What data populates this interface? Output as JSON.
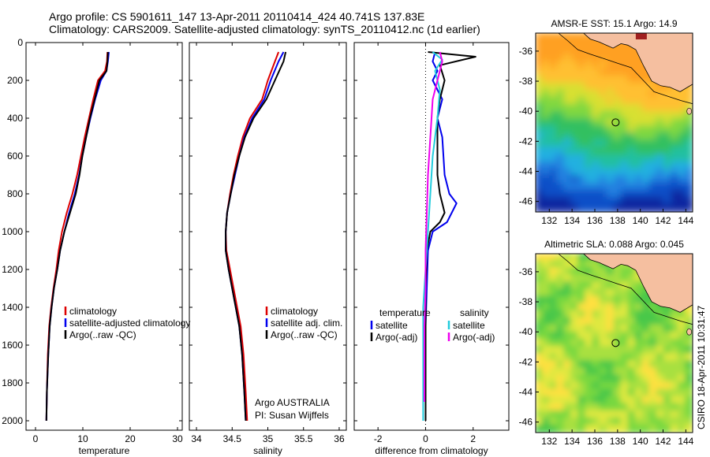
{
  "header": {
    "line1": "Argo profile: CS 5901611_147 13-Apr-2011 20110414_424 40.741S 137.83E",
    "line2": "Climatology: CARS2009. Satellite-adjusted climatology: synTS_20110412.nc (1d earlier)"
  },
  "side_text": "CSIRO 18-Apr-2011 10:31:47",
  "credits": {
    "line1": "Argo AUSTRALIA",
    "line2": "PI: Susan Wijffels"
  },
  "colors": {
    "climatology": "#dd0000",
    "satellite": "#0000ee",
    "argo": "#000000",
    "sal_sat": "#22ccdd",
    "sal_argo": "#ee00ee",
    "land": "#f5bfa0"
  },
  "chart_data": [
    {
      "type": "line",
      "id": "temperature",
      "xlabel": "temperature",
      "ylabel": "",
      "xlim": [
        -2,
        31
      ],
      "ylim": [
        2050,
        0
      ],
      "y_reversed": true,
      "xticks": [
        0,
        10,
        20,
        30
      ],
      "yticks": [
        0,
        200,
        400,
        600,
        800,
        1000,
        1200,
        1400,
        1600,
        1800,
        2000
      ],
      "legend": [
        "climatology",
        "satellite-adjusted climatology",
        "Argo(..raw -QC)"
      ],
      "legend_position": "lower-right",
      "series": [
        {
          "name": "climatology",
          "color": "#dd0000",
          "x": [
            15.2,
            15.1,
            14.7,
            13.2,
            12.2,
            11.3,
            10.4,
            9.6,
            8.8,
            7.8,
            6.6,
            5.6,
            4.9,
            4.4,
            3.8,
            3.3,
            2.9,
            2.6,
            2.4,
            2.3
          ],
          "y": [
            50,
            100,
            150,
            200,
            300,
            400,
            500,
            600,
            700,
            800,
            900,
            1000,
            1100,
            1200,
            1300,
            1400,
            1500,
            1650,
            1850,
            2000
          ]
        },
        {
          "name": "satellite-adjusted climatology",
          "color": "#0000ee",
          "x": [
            15.5,
            15.3,
            15.0,
            13.8,
            12.6,
            11.6,
            10.7,
            9.9,
            9.2,
            8.3,
            7.1,
            6.1,
            5.2,
            4.6,
            3.9,
            3.4,
            3.0,
            2.7,
            2.4,
            2.3
          ],
          "y": [
            50,
            100,
            150,
            200,
            300,
            400,
            500,
            600,
            700,
            800,
            900,
            1000,
            1100,
            1200,
            1300,
            1400,
            1500,
            1650,
            1850,
            2000
          ]
        },
        {
          "name": "Argo(..raw -QC)",
          "color": "#000000",
          "x": [
            15.3,
            15.2,
            15.0,
            13.5,
            12.5,
            11.5,
            10.7,
            9.9,
            9.3,
            8.5,
            7.3,
            6.1,
            5.2,
            4.6,
            3.9,
            3.4,
            3.0,
            2.7,
            2.4,
            2.3
          ],
          "y": [
            50,
            100,
            150,
            200,
            300,
            400,
            500,
            600,
            700,
            800,
            900,
            1000,
            1100,
            1200,
            1300,
            1400,
            1500,
            1650,
            1850,
            2000
          ]
        }
      ]
    },
    {
      "type": "line",
      "id": "salinity",
      "xlabel": "salinity",
      "ylabel": "",
      "xlim": [
        33.9,
        36.1
      ],
      "ylim": [
        2050,
        0
      ],
      "y_reversed": true,
      "xticks": [
        34,
        34.5,
        35,
        35.5,
        36
      ],
      "legend": [
        "climatology",
        "satellite adj. clim.",
        "Argo(..raw -QC)"
      ],
      "legend_position": "lower-right",
      "series": [
        {
          "name": "climatology",
          "color": "#dd0000",
          "x": [
            35.15,
            35.1,
            35.0,
            34.92,
            34.75,
            34.65,
            34.58,
            34.52,
            34.47,
            34.43,
            34.41,
            34.42,
            34.47,
            34.52,
            34.57,
            34.62,
            34.66,
            34.69,
            34.71
          ],
          "y": [
            50,
            100,
            200,
            300,
            400,
            500,
            600,
            700,
            800,
            900,
            1000,
            1100,
            1200,
            1300,
            1400,
            1500,
            1650,
            1850,
            2000
          ]
        },
        {
          "name": "satellite adj. clim.",
          "color": "#0000ee",
          "x": [
            35.22,
            35.15,
            35.04,
            34.95,
            34.78,
            34.67,
            34.6,
            34.54,
            34.48,
            34.43,
            34.41,
            34.41,
            34.45,
            34.5,
            34.55,
            34.6,
            34.64,
            34.67,
            34.69
          ],
          "y": [
            50,
            100,
            200,
            300,
            400,
            500,
            600,
            700,
            800,
            900,
            1000,
            1100,
            1200,
            1300,
            1400,
            1500,
            1650,
            1850,
            2000
          ]
        },
        {
          "name": "Argo(..raw -QC)",
          "color": "#000000",
          "x": [
            35.25,
            35.22,
            35.1,
            34.98,
            34.8,
            34.68,
            34.6,
            34.53,
            34.48,
            34.43,
            34.41,
            34.41,
            34.45,
            34.5,
            34.55,
            34.6,
            34.64,
            34.67,
            34.69
          ],
          "y": [
            50,
            100,
            200,
            300,
            400,
            500,
            600,
            700,
            800,
            900,
            1000,
            1100,
            1200,
            1300,
            1400,
            1500,
            1650,
            1850,
            2000
          ]
        }
      ]
    },
    {
      "type": "line",
      "id": "difference",
      "xlabel": "difference from climatology",
      "ylabel": "",
      "xlim": [
        -3,
        3.5
      ],
      "ylim": [
        2050,
        0
      ],
      "y_reversed": true,
      "xticks": [
        -2,
        0,
        2
      ],
      "legend_groups": [
        {
          "title": "temperature",
          "entries": [
            "satellite",
            "Argo(-adj)"
          ]
        },
        {
          "title": "salinity",
          "entries": [
            "satellite",
            "Argo(-adj)"
          ]
        }
      ],
      "legend_position": "lower-center",
      "series": [
        {
          "name": "satellite",
          "group": "temperature",
          "color": "#0000ee",
          "x": [
            0.4,
            0.3,
            0.5,
            0.3,
            0.7,
            0.5,
            0.7,
            0.8,
            1.0,
            1.3,
            0.9,
            0.3,
            0.1,
            0.05,
            0.0,
            0.0,
            0.0
          ],
          "y": [
            50,
            100,
            150,
            200,
            300,
            400,
            500,
            700,
            800,
            850,
            950,
            1000,
            1100,
            1300,
            1500,
            1800,
            2000
          ]
        },
        {
          "name": "Argo(-adj)",
          "group": "temperature",
          "color": "#000000",
          "x": [
            0.1,
            2.1,
            0.6,
            0.8,
            0.6,
            0.5,
            0.5,
            0.5,
            0.6,
            0.8,
            0.6,
            0.2,
            0.05,
            0.0,
            0.0,
            0.0,
            0.0
          ],
          "y": [
            50,
            75,
            120,
            200,
            300,
            400,
            500,
            700,
            800,
            900,
            950,
            1000,
            1100,
            1300,
            1500,
            1800,
            2000
          ]
        },
        {
          "name": "satellite",
          "group": "salinity",
          "color": "#22ccdd",
          "x": [
            0.3,
            0.7,
            0.4,
            0.6,
            0.5,
            0.3,
            0.2,
            0.1,
            0.0,
            -0.1,
            -0.1,
            -0.1,
            -0.1
          ],
          "y": [
            50,
            90,
            150,
            250,
            400,
            600,
            800,
            1000,
            1200,
            1400,
            1600,
            1800,
            2000
          ]
        },
        {
          "name": "Argo(-adj)",
          "group": "salinity",
          "color": "#ee00ee",
          "x": [
            0.6,
            0.7,
            0.3,
            0.2,
            0.1,
            0.05,
            0.0,
            0.0,
            -0.05,
            -0.05,
            -0.05
          ],
          "y": [
            50,
            100,
            300,
            500,
            700,
            900,
            1100,
            1300,
            1500,
            1700,
            1900
          ]
        }
      ]
    },
    {
      "type": "heatmap",
      "id": "sst_map",
      "title": "AMSR-E SST: 15.1 Argo: 14.9",
      "xlim": [
        130.8,
        144.6
      ],
      "ylim": [
        -46.7,
        -34.8
      ],
      "xticks": [
        132,
        134,
        136,
        138,
        140,
        142,
        144
      ],
      "yticks": [
        -36,
        -38,
        -40,
        -42,
        -44,
        -46
      ],
      "marker": {
        "lon": 137.83,
        "lat": -40.741
      }
    },
    {
      "type": "heatmap",
      "id": "sla_map",
      "title": "Altimetric SLA: 0.088 Argo: 0.045",
      "xlim": [
        130.8,
        144.6
      ],
      "ylim": [
        -46.7,
        -34.8
      ],
      "xticks": [
        132,
        134,
        136,
        138,
        140,
        142,
        144
      ],
      "yticks": [
        -36,
        -38,
        -40,
        -42,
        -44,
        -46
      ],
      "marker": {
        "lon": 137.83,
        "lat": -40.741
      }
    }
  ]
}
